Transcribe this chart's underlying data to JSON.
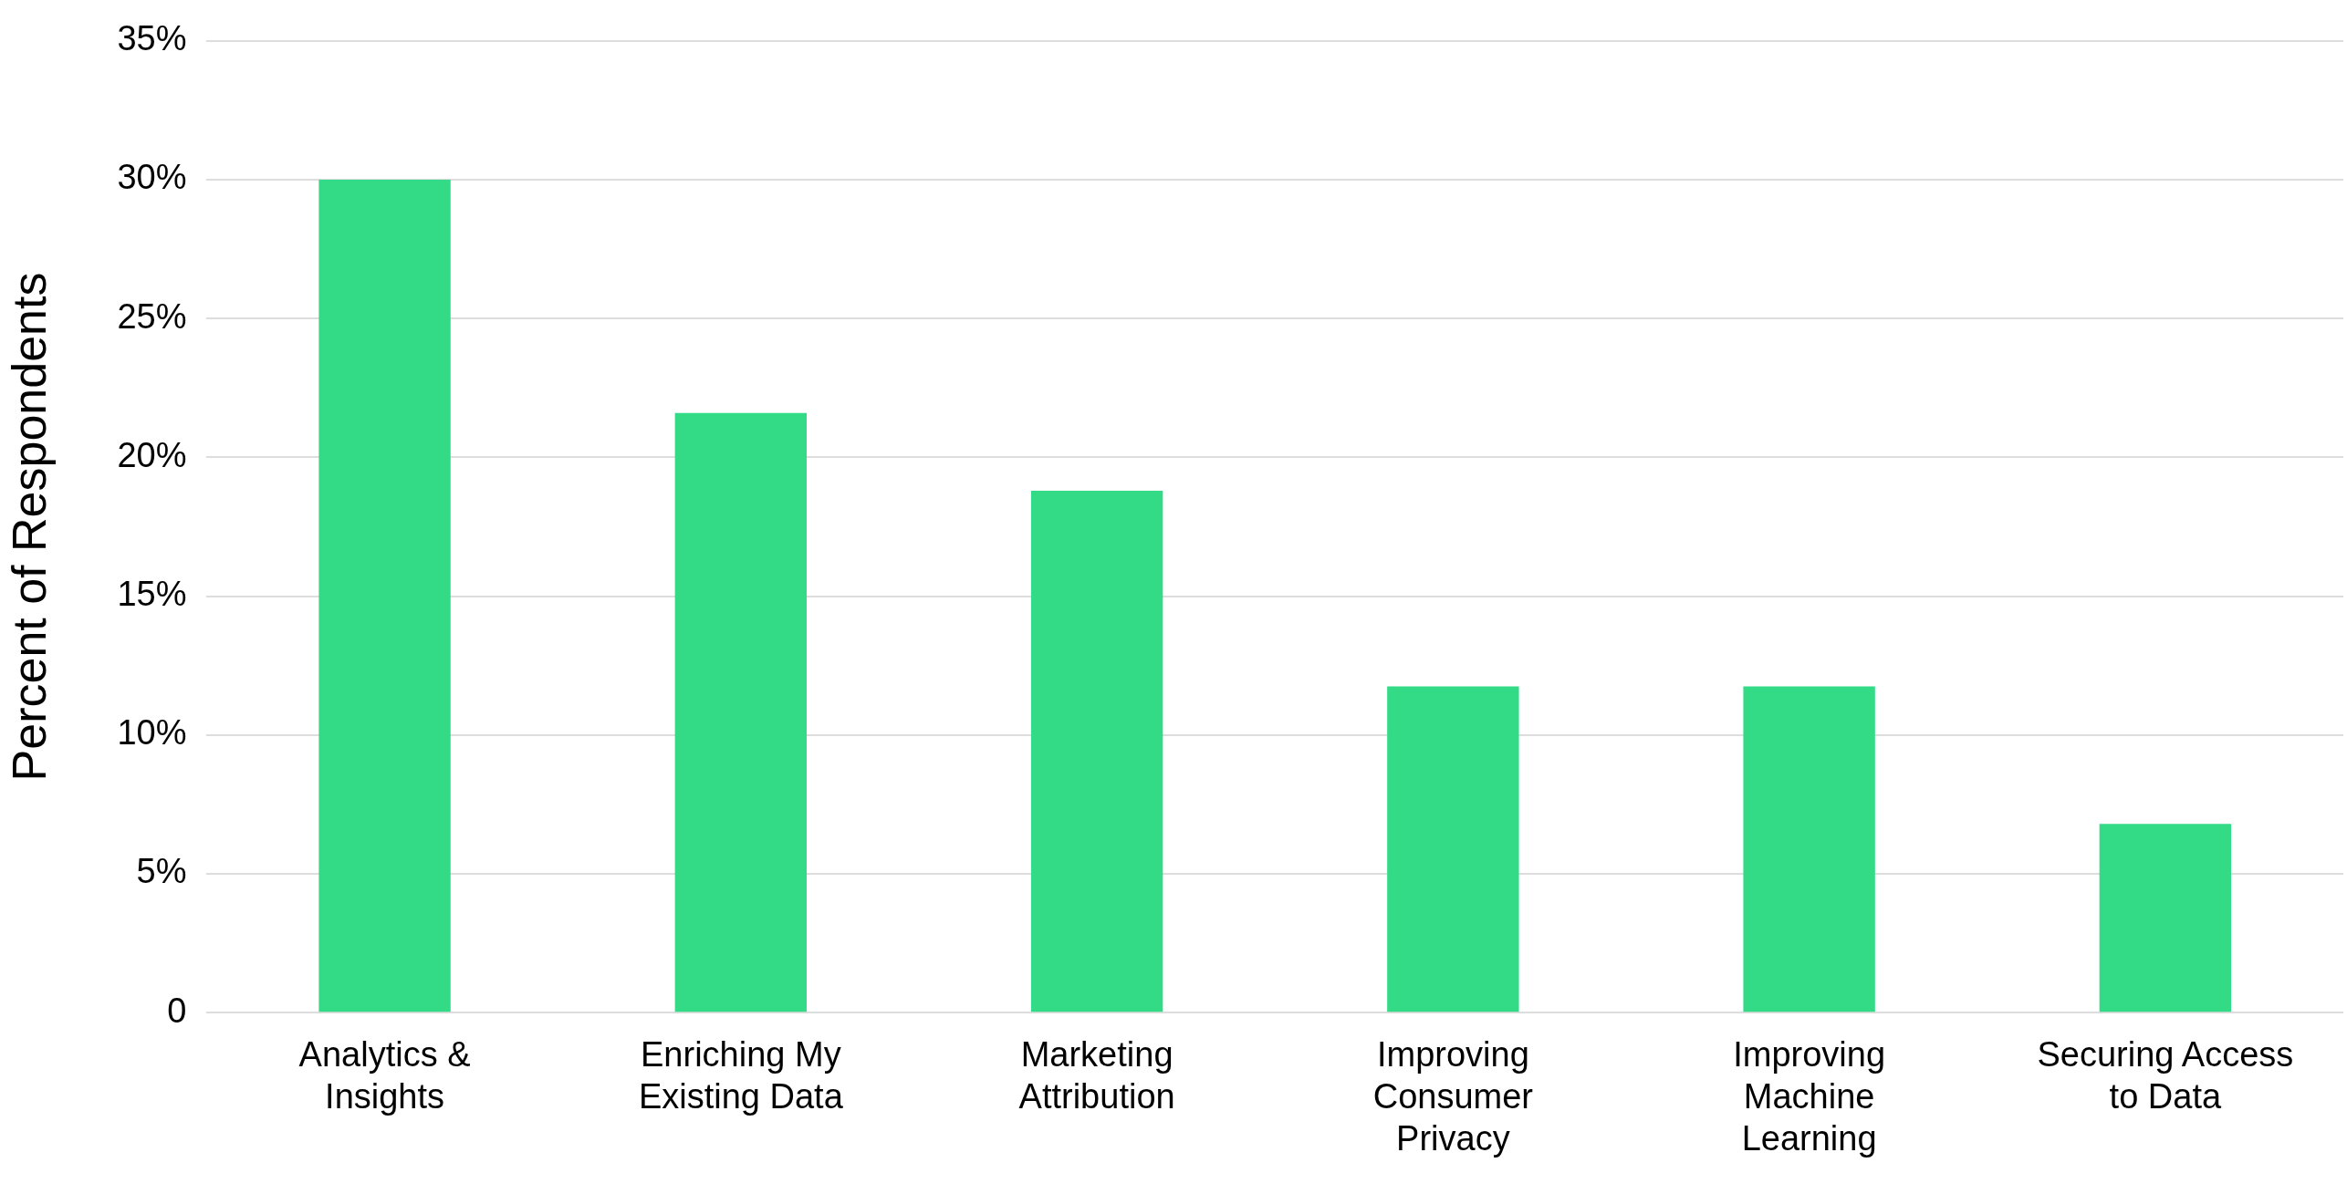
{
  "chart_data": {
    "type": "bar",
    "ylabel": "Percent of Respondents",
    "categories": [
      "Analytics & Insights",
      "Enriching My Existing Data",
      "Marketing Attribution",
      "Improving Consumer Privacy",
      "Improving Machine Learning",
      "Securing Access to Data"
    ],
    "values": [
      30,
      21.6,
      18.8,
      11.75,
      11.75,
      6.8
    ],
    "color": "#34db87",
    "ylim": [
      0,
      35
    ],
    "yticks": [
      0,
      {
        "value": 5,
        "label": "5%"
      },
      {
        "value": 10,
        "label": "10%"
      },
      {
        "value": 15,
        "label": "15%"
      },
      {
        "value": 20,
        "label": "20%"
      },
      {
        "value": 25,
        "label": "25%"
      },
      {
        "value": 30,
        "label": "30%"
      },
      {
        "value": 35,
        "label": "35%"
      }
    ],
    "grid": "y",
    "legend": false
  }
}
